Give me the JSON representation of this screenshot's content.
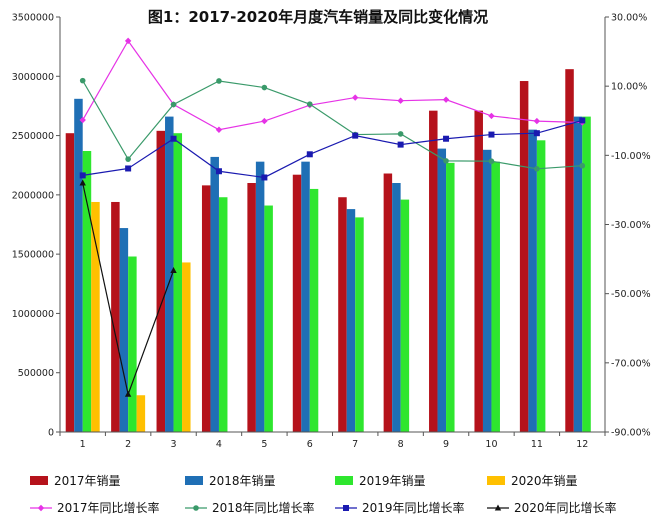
{
  "chart_data": {
    "type": "bar",
    "title": "图1：2017-2020年月度汽车销量及同比变化情况",
    "categories": [
      "1",
      "2",
      "3",
      "4",
      "5",
      "6",
      "7",
      "8",
      "9",
      "10",
      "11",
      "12"
    ],
    "y_left": {
      "min": 0,
      "max": 3500000,
      "ticks": [
        "0",
        "500000",
        "1000000",
        "1500000",
        "2000000",
        "2500000",
        "3000000",
        "3500000"
      ]
    },
    "y_right": {
      "min": -90,
      "max": 30,
      "ticks": [
        "-90.00%",
        "-70.00%",
        "-50.00%",
        "-30.00%",
        "-10.00%",
        "10.00%",
        "30.00%"
      ]
    },
    "bar_series": [
      {
        "name": "2017年销量",
        "color": "#b5121b",
        "values": [
          2520000,
          1940000,
          2540000,
          2080000,
          2100000,
          2170000,
          1980000,
          2180000,
          2710000,
          2710000,
          2960000,
          3060000
        ]
      },
      {
        "name": "2018年销量",
        "color": "#1f6fb5",
        "values": [
          2810000,
          1720000,
          2660000,
          2320000,
          2280000,
          2280000,
          1880000,
          2100000,
          2390000,
          2380000,
          2550000,
          2660000
        ]
      },
      {
        "name": "2019年销量",
        "color": "#2ee62e",
        "values": [
          2370000,
          1480000,
          2520000,
          1980000,
          1910000,
          2050000,
          1810000,
          1960000,
          2270000,
          2280000,
          2460000,
          2660000
        ]
      },
      {
        "name": "2020年销量",
        "color": "#ffc000",
        "values": [
          1940000,
          310000,
          1430000,
          null,
          null,
          null,
          null,
          null,
          null,
          null,
          null,
          null
        ]
      }
    ],
    "line_series": [
      {
        "name": "2017年同比增长率",
        "color": "#e633e6",
        "marker": "diamond",
        "values": [
          0.2,
          23.1,
          4.7,
          -2.6,
          -0.1,
          4.5,
          6.7,
          5.8,
          6.1,
          1.4,
          -0.1,
          -0.5
        ]
      },
      {
        "name": "2018年同比增长率",
        "color": "#3a9a6a",
        "marker": "circle",
        "values": [
          11.6,
          -11.1,
          4.7,
          11.5,
          9.6,
          4.8,
          -4.0,
          -3.8,
          -11.6,
          -11.7,
          -13.9,
          -13.0
        ]
      },
      {
        "name": "2019年同比增长率",
        "color": "#1a1ab0",
        "marker": "square",
        "values": [
          -15.8,
          -13.8,
          -5.2,
          -14.6,
          -16.4,
          -9.7,
          -4.3,
          -6.9,
          -5.2,
          -4.0,
          -3.6,
          0.1
        ]
      },
      {
        "name": "2020年同比增长率",
        "color": "#111111",
        "marker": "triangle",
        "values": [
          -18.0,
          -79.1,
          -43.3,
          null,
          null,
          null,
          null,
          null,
          null,
          null,
          null,
          null
        ]
      }
    ],
    "legend_position": "bottom",
    "grid": false
  }
}
